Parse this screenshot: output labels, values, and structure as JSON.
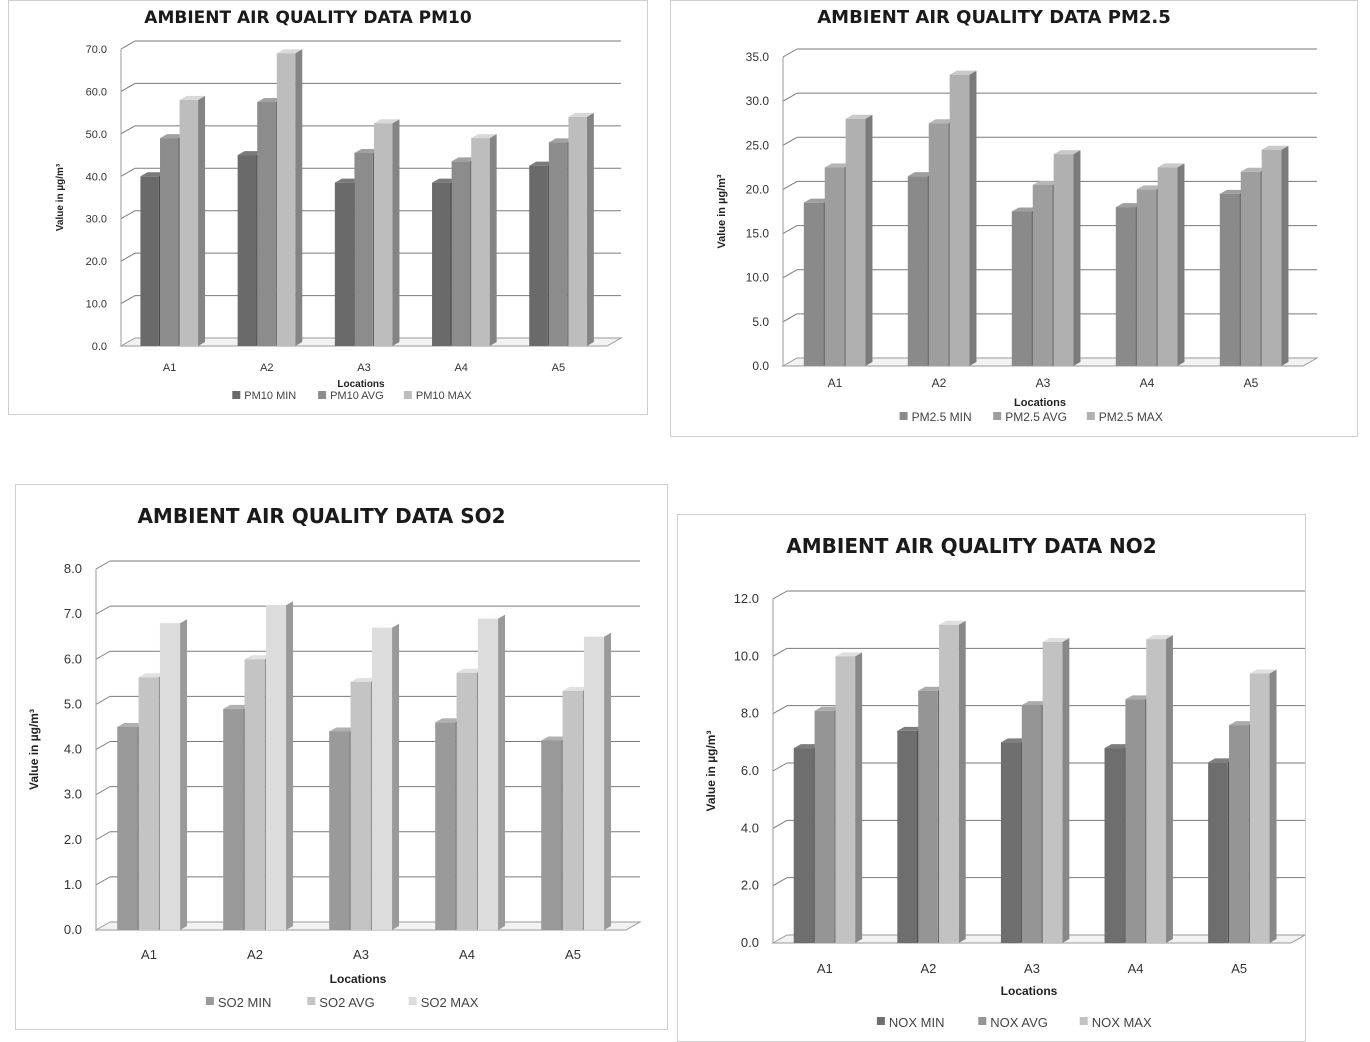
{
  "chart_data": [
    {
      "id": "pm10",
      "type": "bar",
      "title": "AMBIENT AIR QUALITY DATA PM10",
      "xlabel": "Locations",
      "ylabel": "Value in µg/m³",
      "categories": [
        "A1",
        "A2",
        "A3",
        "A4",
        "A5"
      ],
      "ylim": [
        0,
        70
      ],
      "ytick_step": 10,
      "ytick_labels": [
        "0.0",
        "10.0",
        "20.0",
        "30.0",
        "40.0",
        "50.0",
        "60.0",
        "70.0"
      ],
      "grid": true,
      "legend_position": "bottom",
      "series": [
        {
          "name": "PM10 MIN",
          "values": [
            40.0,
            45.0,
            38.5,
            38.5,
            42.5
          ],
          "color": "#6a6a6a"
        },
        {
          "name": "PM10 AVG",
          "values": [
            49.0,
            57.5,
            45.5,
            43.5,
            48.0
          ],
          "color": "#8c8c8c"
        },
        {
          "name": "PM10 MAX",
          "values": [
            58.0,
            69.0,
            52.5,
            49.0,
            54.0
          ],
          "color": "#bdbdbd"
        }
      ]
    },
    {
      "id": "pm25",
      "type": "bar",
      "title": "AMBIENT AIR QUALITY DATA PM2.5",
      "xlabel": "Locations",
      "ylabel": "Value in µg/m³",
      "categories": [
        "A1",
        "A2",
        "A3",
        "A4",
        "A5"
      ],
      "ylim": [
        0,
        35
      ],
      "ytick_step": 5,
      "ytick_labels": [
        "0.0",
        "5.0",
        "10.0",
        "15.0",
        "20.0",
        "25.0",
        "30.0",
        "35.0"
      ],
      "grid": true,
      "legend_position": "bottom",
      "series": [
        {
          "name": "PM2.5 MIN",
          "values": [
            18.5,
            21.5,
            17.5,
            18.0,
            19.5
          ],
          "color": "#8a8a8a"
        },
        {
          "name": "PM2.5 AVG",
          "values": [
            22.5,
            27.5,
            20.5,
            20.0,
            22.0
          ],
          "color": "#9e9e9e"
        },
        {
          "name": "PM2.5 MAX",
          "values": [
            28.0,
            33.0,
            24.0,
            22.5,
            24.5
          ],
          "color": "#b0b0b0"
        }
      ]
    },
    {
      "id": "so2",
      "type": "bar",
      "title": "AMBIENT AIR QUALITY DATA SO2",
      "xlabel": "Locations",
      "ylabel": "Value in µg/m³",
      "categories": [
        "A1",
        "A2",
        "A3",
        "A4",
        "A5"
      ],
      "ylim": [
        0,
        8
      ],
      "ytick_step": 1,
      "ytick_labels": [
        "0.0",
        "1.0",
        "2.0",
        "3.0",
        "4.0",
        "5.0",
        "6.0",
        "7.0",
        "8.0"
      ],
      "grid": true,
      "legend_position": "bottom",
      "series": [
        {
          "name": "SO2 MIN",
          "values": [
            4.5,
            4.9,
            4.4,
            4.6,
            4.2
          ],
          "color": "#9a9a9a"
        },
        {
          "name": "SO2 AVG",
          "values": [
            5.6,
            6.0,
            5.5,
            5.7,
            5.3
          ],
          "color": "#c4c4c4"
        },
        {
          "name": "SO2 MAX",
          "values": [
            6.8,
            7.2,
            6.7,
            6.9,
            6.5
          ],
          "color": "#dcdcdc"
        }
      ]
    },
    {
      "id": "no2",
      "type": "bar",
      "title": "AMBIENT AIR QUALITY DATA NO2",
      "xlabel": "Locations",
      "ylabel": "Value in µg/m³",
      "categories": [
        "A1",
        "A2",
        "A3",
        "A4",
        "A5"
      ],
      "ylim": [
        0,
        12
      ],
      "ytick_step": 2,
      "ytick_labels": [
        "0.0",
        "2.0",
        "4.0",
        "6.0",
        "8.0",
        "10.0",
        "12.0"
      ],
      "grid": true,
      "legend_position": "bottom",
      "series": [
        {
          "name": "NOX MIN",
          "values": [
            6.8,
            7.4,
            7.0,
            6.8,
            6.3
          ],
          "color": "#6e6e6e"
        },
        {
          "name": "NOX AVG",
          "values": [
            8.1,
            8.8,
            8.3,
            8.5,
            7.6
          ],
          "color": "#959595"
        },
        {
          "name": "NOX MAX",
          "values": [
            10.0,
            11.1,
            10.5,
            10.6,
            9.4
          ],
          "color": "#c2c2c2"
        }
      ]
    }
  ]
}
